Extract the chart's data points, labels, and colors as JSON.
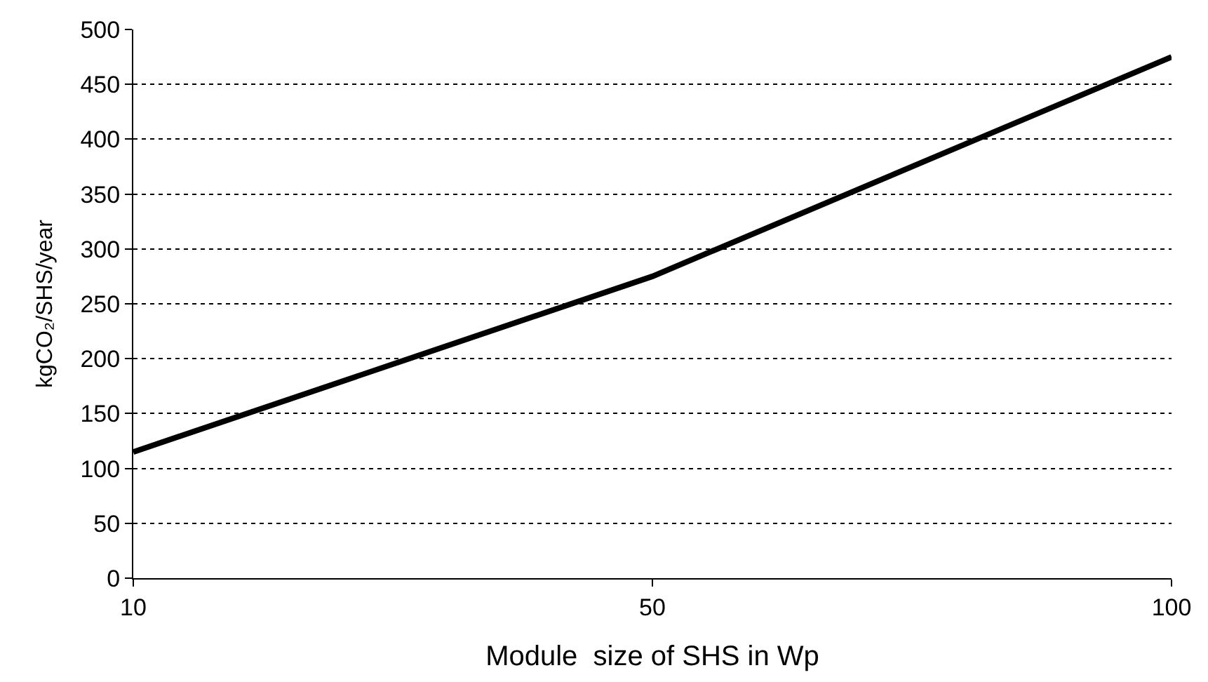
{
  "chart_data": {
    "type": "line",
    "xlabel": "Module  size of SHS in Wp",
    "ylabel": "kgCO₂/SHS/year",
    "categories": [
      "10",
      "50",
      "100"
    ],
    "series": [
      {
        "color": "#000000",
        "values": [
          115,
          275,
          475
        ]
      }
    ],
    "ylim": [
      0,
      500
    ],
    "yticks": [
      0,
      50,
      100,
      150,
      200,
      250,
      300,
      350,
      400,
      450,
      500
    ],
    "grid": "y",
    "marker": "none",
    "line_style": "solid"
  }
}
